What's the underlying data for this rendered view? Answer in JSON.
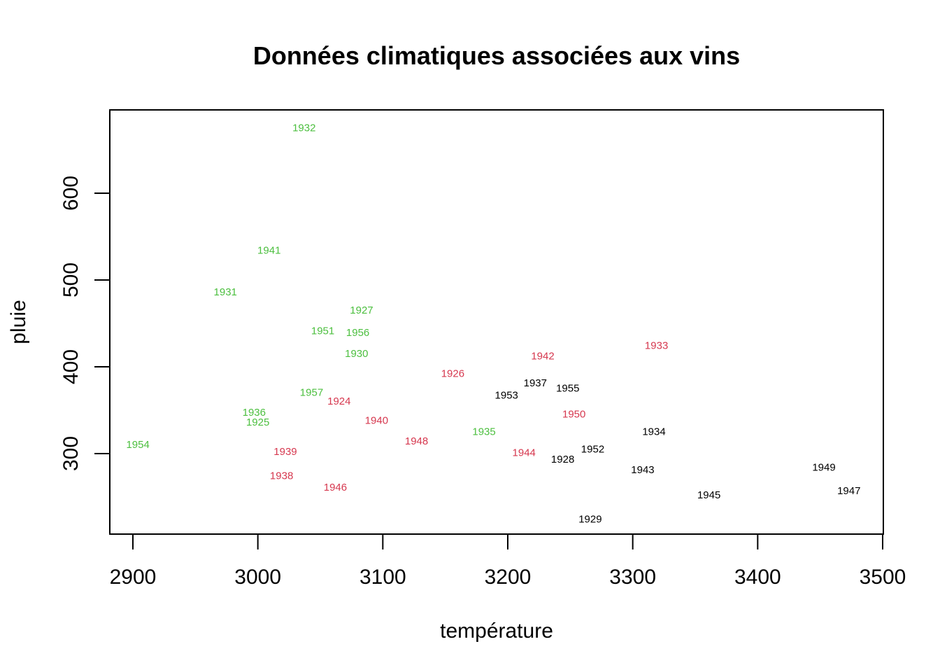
{
  "chart_data": {
    "type": "scatter",
    "title": "Données climatiques associées aux vins",
    "xlabel": "température",
    "ylabel": "pluie",
    "xlim": [
      2880,
      3500
    ],
    "ylim": [
      210,
      700
    ],
    "xticks": [
      2900,
      3000,
      3100,
      3200,
      3300,
      3400,
      3500
    ],
    "yticks": [
      300,
      400,
      500,
      600
    ],
    "grid": false,
    "legend": "none",
    "colors": {
      "green": "#4cbf3f",
      "red": "#d6384f",
      "black": "#000000"
    },
    "points": [
      {
        "label": "1932",
        "x": 3037,
        "y": 675,
        "color": "green"
      },
      {
        "label": "1941",
        "x": 3009,
        "y": 534,
        "color": "green"
      },
      {
        "label": "1931",
        "x": 2974,
        "y": 486,
        "color": "green"
      },
      {
        "label": "1927",
        "x": 3083,
        "y": 465,
        "color": "green"
      },
      {
        "label": "1951",
        "x": 3052,
        "y": 441,
        "color": "green"
      },
      {
        "label": "1956",
        "x": 3080,
        "y": 439,
        "color": "green"
      },
      {
        "label": "1930",
        "x": 3079,
        "y": 415,
        "color": "green"
      },
      {
        "label": "1957",
        "x": 3043,
        "y": 370,
        "color": "green"
      },
      {
        "label": "1936",
        "x": 2997,
        "y": 347,
        "color": "green"
      },
      {
        "label": "1925",
        "x": 3000,
        "y": 336,
        "color": "green"
      },
      {
        "label": "1954",
        "x": 2904,
        "y": 310,
        "color": "green"
      },
      {
        "label": "1935",
        "x": 3181,
        "y": 325,
        "color": "green"
      },
      {
        "label": "1942",
        "x": 3228,
        "y": 412,
        "color": "red"
      },
      {
        "label": "1933",
        "x": 3319,
        "y": 424,
        "color": "red"
      },
      {
        "label": "1926",
        "x": 3156,
        "y": 392,
        "color": "red"
      },
      {
        "label": "1924",
        "x": 3065,
        "y": 360,
        "color": "red"
      },
      {
        "label": "1940",
        "x": 3095,
        "y": 338,
        "color": "red"
      },
      {
        "label": "1950",
        "x": 3253,
        "y": 345,
        "color": "red"
      },
      {
        "label": "1948",
        "x": 3127,
        "y": 314,
        "color": "red"
      },
      {
        "label": "1939",
        "x": 3022,
        "y": 302,
        "color": "red"
      },
      {
        "label": "1944",
        "x": 3213,
        "y": 301,
        "color": "red"
      },
      {
        "label": "1938",
        "x": 3019,
        "y": 274,
        "color": "red"
      },
      {
        "label": "1946",
        "x": 3062,
        "y": 261,
        "color": "red"
      },
      {
        "label": "1937",
        "x": 3222,
        "y": 381,
        "color": "black"
      },
      {
        "label": "1955",
        "x": 3248,
        "y": 375,
        "color": "black"
      },
      {
        "label": "1953",
        "x": 3199,
        "y": 367,
        "color": "black"
      },
      {
        "label": "1934",
        "x": 3317,
        "y": 325,
        "color": "black"
      },
      {
        "label": "1952",
        "x": 3268,
        "y": 305,
        "color": "black"
      },
      {
        "label": "1928",
        "x": 3244,
        "y": 293,
        "color": "black"
      },
      {
        "label": "1943",
        "x": 3308,
        "y": 281,
        "color": "black"
      },
      {
        "label": "1949",
        "x": 3453,
        "y": 284,
        "color": "black"
      },
      {
        "label": "1947",
        "x": 3473,
        "y": 257,
        "color": "black"
      },
      {
        "label": "1945",
        "x": 3361,
        "y": 252,
        "color": "black"
      },
      {
        "label": "1929",
        "x": 3266,
        "y": 224,
        "color": "black"
      }
    ]
  }
}
